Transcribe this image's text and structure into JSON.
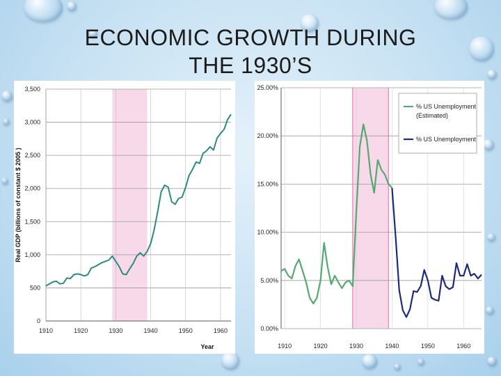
{
  "title_line1": "ECONOMIC GROWTH DURING",
  "title_line2": "THE 1930’S",
  "chart_data": [
    {
      "type": "line",
      "title": "",
      "xlabel": "Year",
      "ylabel": "Real GDP (billions of constant $ 2005 )",
      "xlim": [
        1910,
        1963
      ],
      "ylim": [
        0,
        3500
      ],
      "xticks": [
        "1910",
        "1920",
        "1930",
        "1940",
        "1950",
        "1960"
      ],
      "yticks": [
        "0",
        "500",
        "1,000",
        "1,500",
        "2,000",
        "2,500",
        "3,000",
        "3,500"
      ],
      "highlight": {
        "from": 1929,
        "to": 1939,
        "color": "#f7d9ea"
      },
      "grid": "horizontal",
      "series": [
        {
          "color": "#2d8a7f",
          "x": [
            1910,
            1911,
            1912,
            1913,
            1914,
            1915,
            1916,
            1917,
            1918,
            1919,
            1920,
            1921,
            1922,
            1923,
            1924,
            1925,
            1926,
            1927,
            1928,
            1929,
            1930,
            1931,
            1932,
            1933,
            1934,
            1935,
            1936,
            1937,
            1938,
            1939,
            1940,
            1941,
            1942,
            1943,
            1944,
            1945,
            1946,
            1947,
            1948,
            1949,
            1950,
            1951,
            1952,
            1953,
            1954,
            1955,
            1956,
            1957,
            1958,
            1959,
            1960,
            1961,
            1962,
            1963
          ],
          "y": [
            530,
            560,
            590,
            600,
            560,
            570,
            650,
            640,
            700,
            710,
            700,
            680,
            700,
            800,
            820,
            850,
            880,
            900,
            920,
            980,
            900,
            820,
            710,
            700,
            790,
            870,
            980,
            1030,
            980,
            1050,
            1170,
            1380,
            1650,
            1950,
            2050,
            2020,
            1800,
            1760,
            1850,
            1870,
            2020,
            2200,
            2290,
            2400,
            2380,
            2530,
            2570,
            2630,
            2580,
            2760,
            2830,
            2890,
            3040,
            3120
          ]
        }
      ]
    },
    {
      "type": "line",
      "title": "",
      "xlabel": "",
      "ylabel": "",
      "xlim": [
        1909,
        1965
      ],
      "ylim": [
        0,
        25
      ],
      "xticks": [
        "1910",
        "1920",
        "1930",
        "1940",
        "1950",
        "1960"
      ],
      "yticks": [
        "0.00%",
        "5.00%",
        "10.00%",
        "15.00%",
        "20.00%",
        "25.00%"
      ],
      "highlight": {
        "from": 1929,
        "to": 1939,
        "color": "#f7d9ea"
      },
      "grid": "horizontal",
      "legend_position": "top-right",
      "series": [
        {
          "name": "% US Unemployment (Estimated)",
          "color": "#55a872",
          "x": [
            1909,
            1910,
            1911,
            1912,
            1913,
            1914,
            1915,
            1916,
            1917,
            1918,
            1919,
            1920,
            1921,
            1922,
            1923,
            1924,
            1925,
            1926,
            1927,
            1928,
            1929,
            1930,
            1931,
            1932,
            1933,
            1934,
            1935,
            1936,
            1937,
            1938,
            1939,
            1940
          ],
          "y": [
            6.0,
            6.2,
            5.5,
            5.2,
            6.5,
            7.2,
            6.0,
            4.8,
            3.2,
            2.6,
            3.2,
            5.0,
            8.9,
            6.4,
            4.6,
            5.5,
            4.8,
            4.2,
            4.8,
            5.0,
            4.4,
            12.0,
            18.9,
            21.2,
            19.5,
            16.0,
            14.1,
            17.5,
            16.5,
            16.0,
            15.0,
            14.6
          ]
        },
        {
          "name": "% US Unemployment",
          "color": "#1c2a7a",
          "x": [
            1940,
            1941,
            1942,
            1943,
            1944,
            1945,
            1946,
            1947,
            1948,
            1949,
            1950,
            1951,
            1952,
            1953,
            1954,
            1955,
            1956,
            1957,
            1958,
            1959,
            1960,
            1961,
            1962,
            1963,
            1964,
            1965
          ],
          "y": [
            14.6,
            9.5,
            4.0,
            1.9,
            1.2,
            2.0,
            3.9,
            3.8,
            4.4,
            6.1,
            5.0,
            3.2,
            3.0,
            2.9,
            5.5,
            4.4,
            4.1,
            4.3,
            6.8,
            5.5,
            5.5,
            6.7,
            5.5,
            5.7,
            5.2,
            5.6
          ]
        }
      ]
    }
  ]
}
